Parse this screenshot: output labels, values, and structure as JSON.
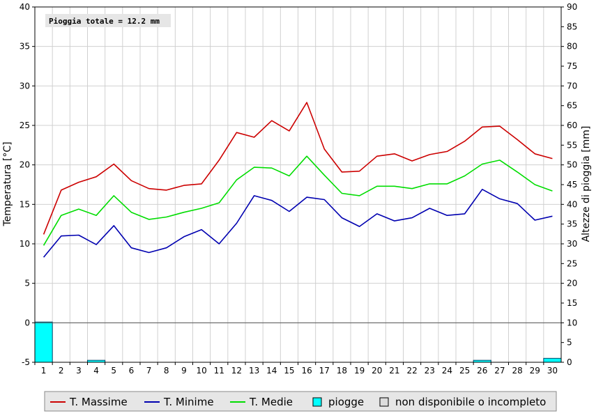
{
  "chart_data": {
    "type": "line",
    "annotation": "Pioggia totale = 12.2 mm",
    "ylabel": "Temperatura [°C]",
    "y2label": "Altezze di pioggia [mm]",
    "ylim": [
      -5,
      40
    ],
    "y2lim": [
      0,
      90
    ],
    "y_ticks": [
      "-5",
      "0",
      "5",
      "10",
      "15",
      "20",
      "25",
      "30",
      "35",
      "40"
    ],
    "y2_ticks": [
      "0",
      "5",
      "10",
      "15",
      "20",
      "25",
      "30",
      "35",
      "40",
      "45",
      "50",
      "55",
      "60",
      "65",
      "70",
      "75",
      "80",
      "85",
      "90"
    ],
    "categories": [
      "1",
      "2",
      "3",
      "4",
      "5",
      "6",
      "7",
      "8",
      "9",
      "10",
      "11",
      "12",
      "13",
      "14",
      "15",
      "16",
      "17",
      "18",
      "19",
      "20",
      "21",
      "22",
      "23",
      "24",
      "25",
      "26",
      "27",
      "28",
      "29",
      "30"
    ],
    "series": [
      {
        "name": "T. Massime",
        "color": "#cc0000",
        "values": [
          11.2,
          16.8,
          17.8,
          18.5,
          20.1,
          18.0,
          17.0,
          16.8,
          17.4,
          17.6,
          20.6,
          24.1,
          23.5,
          25.6,
          24.3,
          27.9,
          22.0,
          19.1,
          19.2,
          21.1,
          21.4,
          20.5,
          21.3,
          21.7,
          23.0,
          24.8,
          24.9,
          23.2,
          21.4,
          20.8
        ]
      },
      {
        "name": "T. Minime",
        "color": "#0000b0",
        "values": [
          8.3,
          11.0,
          11.1,
          9.9,
          12.3,
          9.5,
          8.9,
          9.5,
          10.9,
          11.8,
          10.0,
          12.6,
          16.1,
          15.5,
          14.1,
          15.9,
          15.6,
          13.3,
          12.2,
          13.8,
          12.9,
          13.3,
          14.5,
          13.6,
          13.8,
          16.9,
          15.7,
          15.1,
          13.0,
          13.5
        ]
      },
      {
        "name": "T. Medie",
        "color": "#00dd00",
        "values": [
          9.8,
          13.6,
          14.4,
          13.6,
          16.1,
          14.0,
          13.1,
          13.4,
          14.0,
          14.5,
          15.2,
          18.1,
          19.7,
          19.6,
          18.6,
          21.1,
          18.7,
          16.4,
          16.1,
          17.3,
          17.3,
          17.0,
          17.6,
          17.6,
          18.6,
          20.1,
          20.6,
          19.1,
          17.5,
          16.7
        ]
      }
    ],
    "rain": {
      "name": "piogge",
      "color": "#00ffff",
      "values": [
        10.2,
        0,
        0,
        0.5,
        0,
        0,
        0,
        0,
        0,
        0,
        0,
        0,
        0,
        0,
        0,
        0,
        0,
        0,
        0,
        0,
        0,
        0,
        0,
        0,
        0,
        0.5,
        0,
        0,
        0,
        1.0
      ]
    },
    "legend": [
      {
        "label": "T. Massime",
        "kind": "line",
        "color": "#cc0000"
      },
      {
        "label": "T. Minime",
        "kind": "line",
        "color": "#0000b0"
      },
      {
        "label": "T. Medie",
        "kind": "line",
        "color": "#00dd00"
      },
      {
        "label": "piogge",
        "kind": "box",
        "color": "#00ffff"
      },
      {
        "label": "non disponibile o incompleto",
        "kind": "box",
        "color": "#dcdcdc"
      }
    ],
    "grid": true,
    "legend_position": "bottom"
  }
}
